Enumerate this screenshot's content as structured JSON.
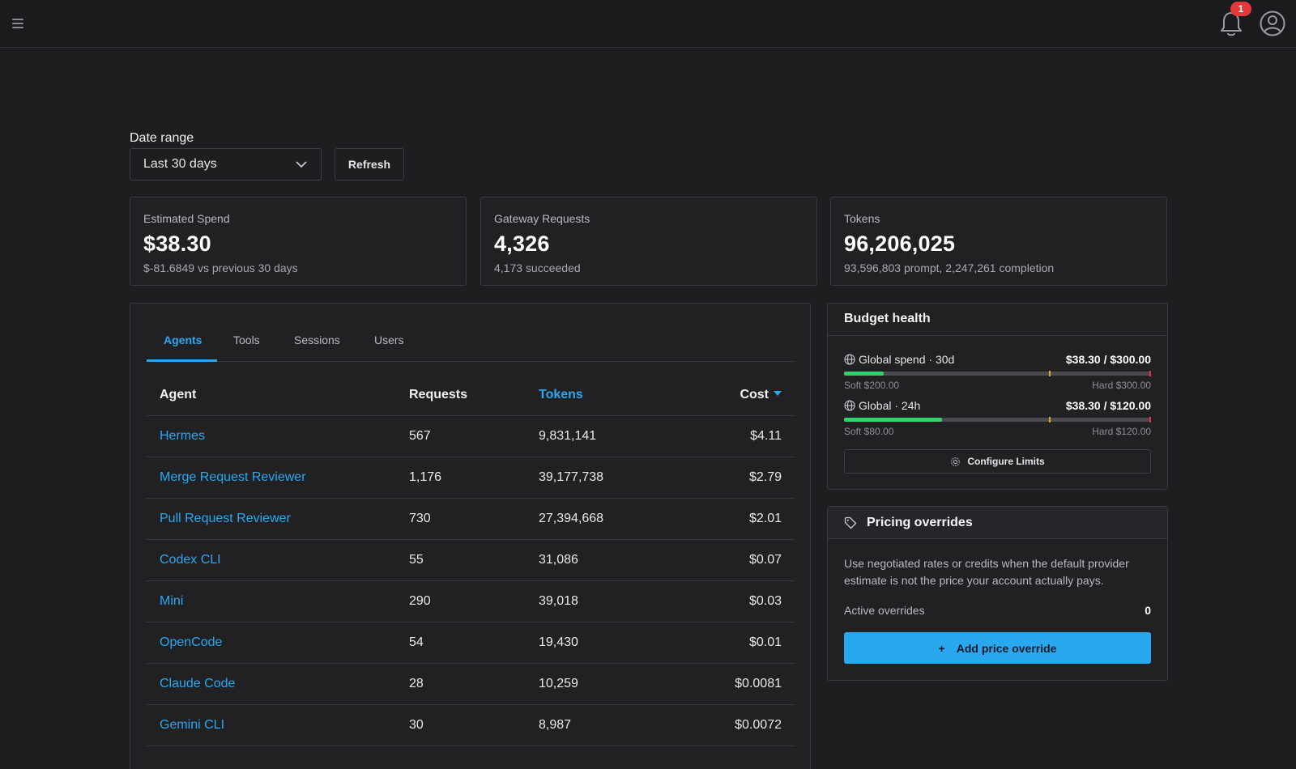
{
  "header": {
    "menu_icon": "hamburger-menu-icon",
    "notification_count": "1",
    "bell_icon": "bell-icon",
    "avatar_icon": "user-avatar-icon"
  },
  "date_range": {
    "label": "Date range",
    "selected": "Last 30 days",
    "refresh_label": "Refresh"
  },
  "stats": [
    {
      "label": "Estimated Spend",
      "value": "$38.30",
      "sub": "$-81.6849 vs previous 30 days"
    },
    {
      "label": "Gateway Requests",
      "value": "4,326",
      "sub": "4,173 succeeded"
    },
    {
      "label": "Tokens",
      "value": "96,206,025",
      "sub": "93,596,803 prompt, 2,247,261 completion"
    }
  ],
  "tabs": [
    {
      "label": "Agents",
      "active": true
    },
    {
      "label": "Tools",
      "active": false
    },
    {
      "label": "Sessions",
      "active": false
    },
    {
      "label": "Users",
      "active": false
    }
  ],
  "table": {
    "headers": {
      "agent": "Agent",
      "requests": "Requests",
      "tokens": "Tokens",
      "cost": "Cost"
    },
    "rows": [
      {
        "agent": "Hermes",
        "requests": "567",
        "tokens": "9,831,141",
        "cost": "$4.11"
      },
      {
        "agent": "Merge Request Reviewer",
        "requests": "1,176",
        "tokens": "39,177,738",
        "cost": "$2.79"
      },
      {
        "agent": "Pull Request Reviewer",
        "requests": "730",
        "tokens": "27,394,668",
        "cost": "$2.01"
      },
      {
        "agent": "Codex CLI",
        "requests": "55",
        "tokens": "31,086",
        "cost": "$0.07"
      },
      {
        "agent": "Mini",
        "requests": "290",
        "tokens": "39,018",
        "cost": "$0.03"
      },
      {
        "agent": "OpenCode",
        "requests": "54",
        "tokens": "19,430",
        "cost": "$0.01"
      },
      {
        "agent": "Claude Code",
        "requests": "28",
        "tokens": "10,259",
        "cost": "$0.0081"
      },
      {
        "agent": "Gemini CLI",
        "requests": "30",
        "tokens": "8,987",
        "cost": "$0.0072"
      }
    ]
  },
  "budget": {
    "title": "Budget health",
    "rows": [
      {
        "name": "Global spend · 30d",
        "amount": "$38.30 / $300.00",
        "soft": "Soft $200.00",
        "hard": "Hard $300.00",
        "fill_fraction": 0.128,
        "soft_fraction": 0.667
      },
      {
        "name": "Global · 24h",
        "amount": "$38.30 / $120.00",
        "soft": "Soft $80.00",
        "hard": "Hard $120.00",
        "fill_fraction": 0.319,
        "soft_fraction": 0.667
      }
    ],
    "configure_label": "Configure Limits"
  },
  "pricing": {
    "title": "Pricing overrides",
    "description": "Use negotiated rates or credits when the default provider estimate is not the price your account actually pays.",
    "active_label": "Active overrides",
    "active_count": "0",
    "add_label": "Add price override",
    "add_icon": "+"
  },
  "colors": {
    "accent": "#29a8f0",
    "background": "#1e1e21",
    "panel": "#212124",
    "success": "#2fd36a",
    "danger": "#e5383b",
    "warning": "#f0a020"
  }
}
